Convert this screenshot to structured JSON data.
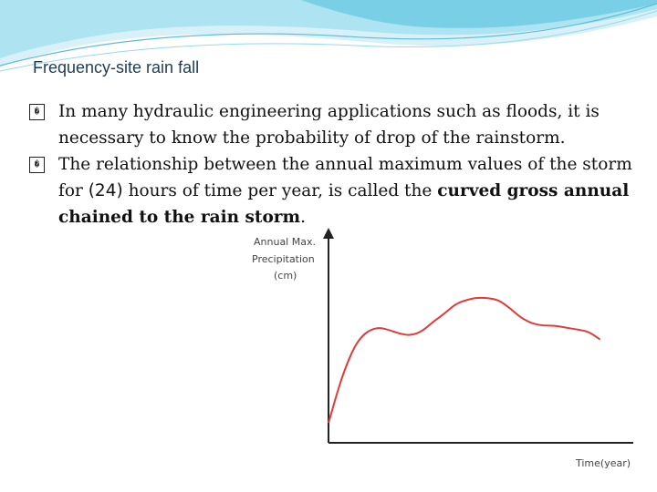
{
  "slide": {
    "title": "Frequency-site rain fall",
    "bullet_glyph": "�",
    "bullets": [
      {
        "text": "In many hydraulic engineering applications such as floods, it is necessary to know the probability of drop of the rainstorm."
      },
      {
        "text_a": "The relationship between the annual maximum values of the storm for ",
        "text_num": "(24)",
        "text_b": " hours of time per year, is called the ",
        "text_bold": "curved gross annual chained to the rain storm",
        "text_end": "."
      }
    ]
  },
  "colors": {
    "curve": "#e03a3a",
    "axis": "#222222",
    "header_light": "#c9ecf5",
    "header_dark": "#7fd0e6"
  },
  "chart_data": {
    "type": "line",
    "title": "",
    "ylabel_lines": [
      "Annual Max.",
      "Precipitation",
      "(cm)"
    ],
    "xlabel": "Time(year)",
    "x": [
      0,
      0.03,
      0.06,
      0.09,
      0.12,
      0.15,
      0.18,
      0.21,
      0.25,
      0.29,
      0.33,
      0.37,
      0.41,
      0.45,
      0.49,
      0.52,
      0.56,
      0.6,
      0.64,
      0.68,
      0.72,
      0.76,
      0.8,
      0.84,
      0.88,
      0.92,
      0.96
    ],
    "y": [
      0.1,
      0.25,
      0.38,
      0.48,
      0.54,
      0.57,
      0.58,
      0.57,
      0.55,
      0.54,
      0.56,
      0.61,
      0.65,
      0.7,
      0.72,
      0.73,
      0.73,
      0.72,
      0.68,
      0.63,
      0.6,
      0.59,
      0.59,
      0.58,
      0.57,
      0.56,
      0.52
    ],
    "xlim": [
      0,
      1
    ],
    "ylim": [
      0,
      1
    ],
    "grid": false,
    "ticks": false
  }
}
